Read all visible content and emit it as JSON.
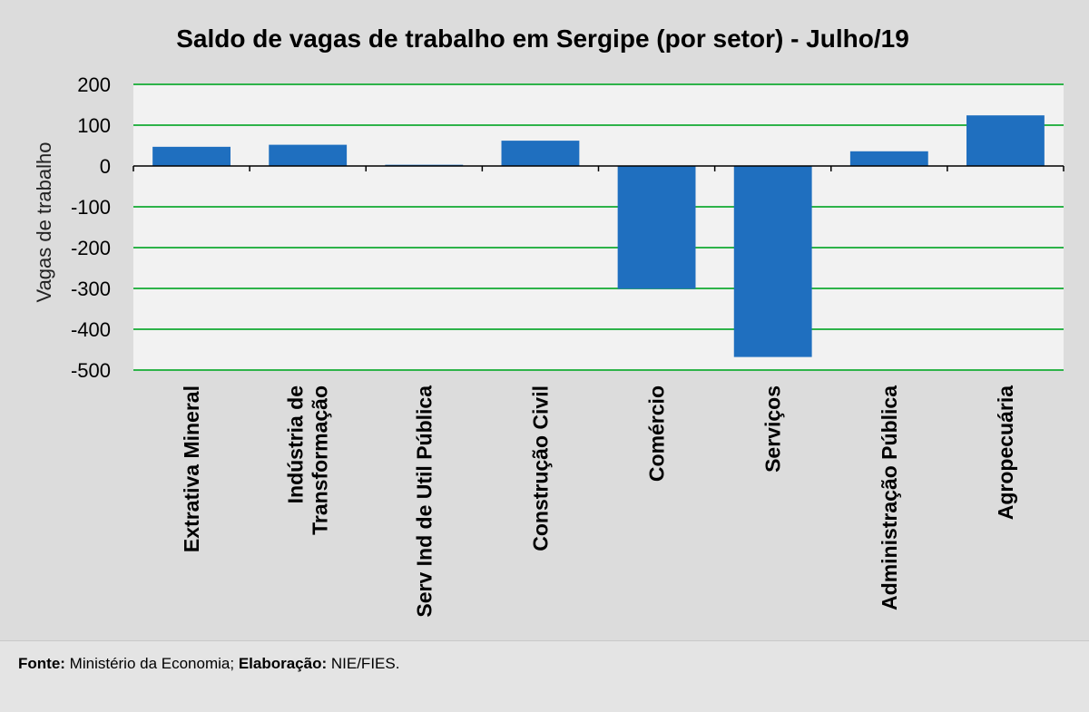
{
  "chart_data": {
    "type": "bar",
    "title": "Saldo de vagas de trabalho em Sergipe (por setor) - Julho/19",
    "ylabel": "Vagas de trabalho",
    "xlabel": "",
    "categories": [
      [
        "Extrativa Mineral"
      ],
      [
        "Indústria de",
        "Transformação"
      ],
      [
        "Serv Ind de Util Pública"
      ],
      [
        "Construção Civil"
      ],
      [
        "Comércio"
      ],
      [
        "Serviços"
      ],
      [
        "Administração Pública"
      ],
      [
        "Agropecuária"
      ]
    ],
    "values": [
      47,
      52,
      3,
      62,
      -301,
      -468,
      36,
      124
    ],
    "ylim": [
      -500,
      200
    ],
    "yticks": [
      200,
      100,
      0,
      -100,
      -200,
      -300,
      -400,
      -500
    ],
    "grid": true,
    "legend": "none",
    "colors": {
      "bar": "#1f6fbf",
      "grid": "#2eb34a",
      "plot_background": "#f2f2f2",
      "page_background": "#dcdcdc"
    }
  },
  "footer": {
    "source_label": "Fonte:",
    "source_value": "Ministério da Economia;",
    "elaboration_label": "Elaboração:",
    "elaboration_value": "NIE/FIES."
  }
}
